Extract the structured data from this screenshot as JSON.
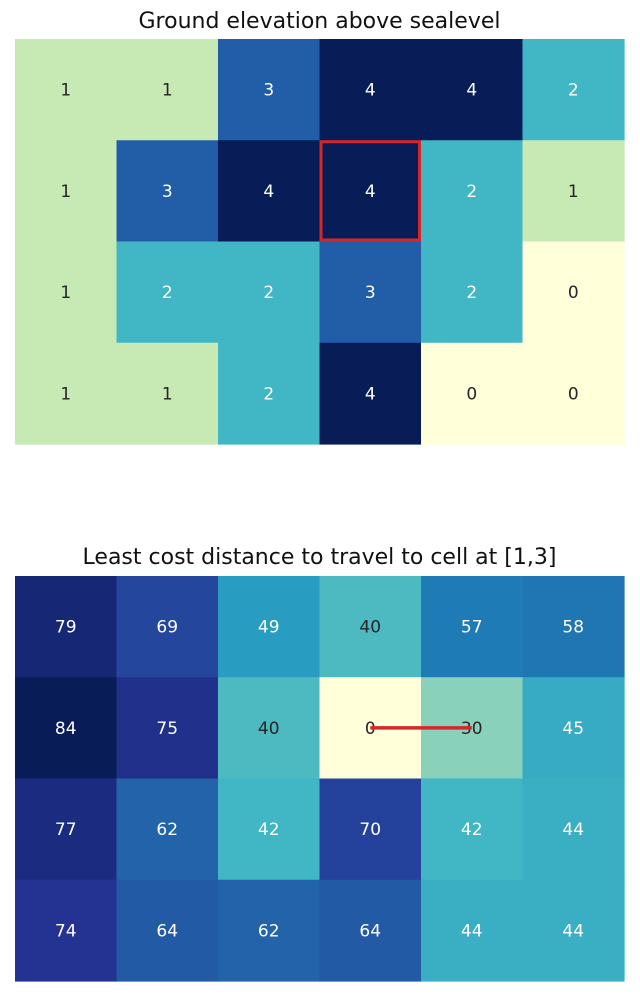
{
  "chart_data": [
    {
      "type": "heatmap",
      "title": "Ground elevation above sealevel",
      "rows": 4,
      "cols": 6,
      "values": [
        [
          1,
          1,
          3,
          4,
          4,
          2
        ],
        [
          1,
          3,
          4,
          4,
          2,
          1
        ],
        [
          1,
          2,
          2,
          3,
          2,
          0
        ],
        [
          1,
          1,
          2,
          4,
          0,
          0
        ]
      ],
      "colormap": "YlGnBu",
      "vmin": 0,
      "vmax": 4,
      "highlight_cell": {
        "row": 1,
        "col": 3,
        "color": "#d62728"
      }
    },
    {
      "type": "heatmap",
      "title": "Least cost distance to travel to cell at [1,3]",
      "rows": 4,
      "cols": 6,
      "values": [
        [
          79,
          69,
          49,
          40,
          57,
          58
        ],
        [
          84,
          75,
          40,
          0,
          30,
          45
        ],
        [
          77,
          62,
          42,
          70,
          42,
          44
        ],
        [
          74,
          64,
          62,
          64,
          44,
          44
        ]
      ],
      "colormap": "YlGnBu",
      "vmin": 0,
      "vmax": 84,
      "path": {
        "from": {
          "row": 1,
          "col": 3
        },
        "to": {
          "row": 1,
          "col": 4
        },
        "color": "#d62728"
      }
    }
  ]
}
